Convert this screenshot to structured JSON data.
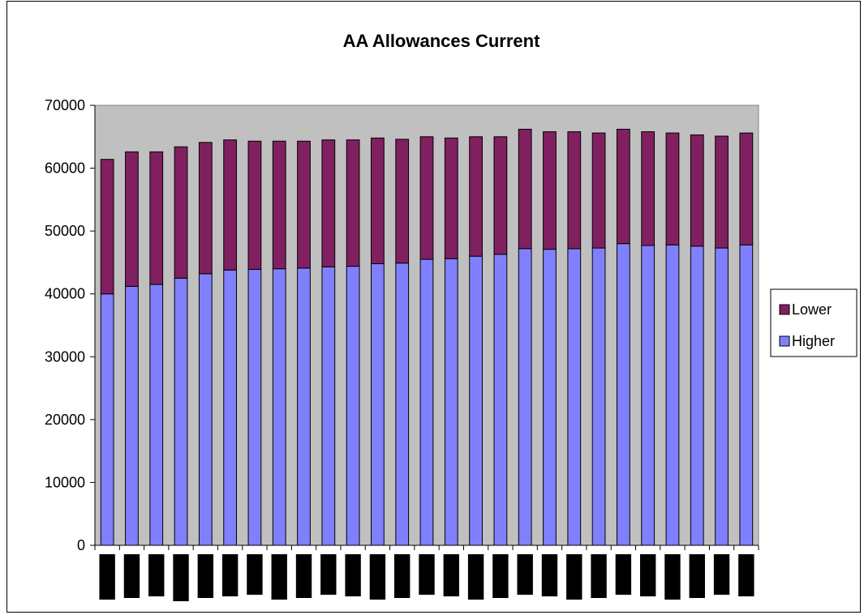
{
  "chart_data": {
    "type": "bar",
    "stacked": true,
    "title": "AA Allowances Current",
    "xlabel": "",
    "ylabel": "",
    "ylim": [
      0,
      70000
    ],
    "yticks": [
      0,
      10000,
      20000,
      30000,
      40000,
      50000,
      60000,
      70000
    ],
    "grid": false,
    "legend": "right",
    "background_color": "#c0c0c0",
    "series": [
      {
        "name": "Higher",
        "color": "#8080ff",
        "values": [
          40000,
          41200,
          41500,
          42500,
          43200,
          43800,
          43900,
          44000,
          44100,
          44300,
          44400,
          44800,
          44900,
          45500,
          45600,
          46000,
          46300,
          47200,
          47100,
          47200,
          47300,
          48000,
          47700,
          47800,
          47600,
          47300,
          47800
        ]
      },
      {
        "name": "Lower",
        "color": "#802060",
        "values": [
          21400,
          21400,
          21100,
          20900,
          20900,
          20700,
          20400,
          20300,
          20200,
          20200,
          20100,
          20000,
          19700,
          19500,
          19200,
          19000,
          18700,
          19000,
          18700,
          18600,
          18300,
          18200,
          18100,
          17800,
          17700,
          17800,
          17800
        ]
      }
    ]
  }
}
